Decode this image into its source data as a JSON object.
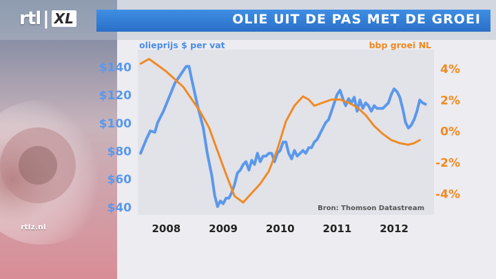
{
  "logo": {
    "brand": "rtl",
    "suffix": "XL"
  },
  "header": {
    "title": "OLIE UIT DE PAS MET DE GROEI"
  },
  "watermark": "rtlz.nl",
  "colors": {
    "oil": "#5b98ea",
    "gdp": "#f08a22",
    "title_bar": "#3480d8",
    "plot_bg": "#e3e3ea"
  },
  "chart_data": {
    "type": "line",
    "source_note": "Bron: Thomson Datastream",
    "x_ticks": [
      "2008",
      "2009",
      "2010",
      "2011",
      "2012"
    ],
    "x_range": [
      2007.6,
      2012.8
    ],
    "left_axis": {
      "label": "olieprijs $ per vat",
      "range": [
        34,
        152
      ],
      "ticks": [
        "$140",
        "$120",
        "$100",
        "$80",
        "$60",
        "$40"
      ],
      "tick_values": [
        140,
        120,
        100,
        80,
        60,
        40
      ]
    },
    "right_axis": {
      "label": "bbp groei NL",
      "range": [
        -5.4,
        5.2
      ],
      "ticks": [
        "4%",
        "2%",
        "0%",
        "-2%",
        "-4%"
      ],
      "tick_values": [
        4,
        2,
        0,
        -2,
        -4
      ]
    },
    "series": [
      {
        "name": "olieprijs $ per vat",
        "axis": "left",
        "points": [
          [
            2007.65,
            78
          ],
          [
            2007.75,
            88
          ],
          [
            2007.82,
            94
          ],
          [
            2007.9,
            93
          ],
          [
            2007.95,
            100
          ],
          [
            2008.05,
            108
          ],
          [
            2008.15,
            118
          ],
          [
            2008.25,
            128
          ],
          [
            2008.35,
            134
          ],
          [
            2008.45,
            140
          ],
          [
            2008.5,
            140
          ],
          [
            2008.55,
            130
          ],
          [
            2008.65,
            112
          ],
          [
            2008.75,
            96
          ],
          [
            2008.82,
            78
          ],
          [
            2008.9,
            62
          ],
          [
            2008.95,
            48
          ],
          [
            2009.0,
            40
          ],
          [
            2009.05,
            44
          ],
          [
            2009.1,
            42
          ],
          [
            2009.15,
            46
          ],
          [
            2009.2,
            46
          ],
          [
            2009.25,
            50
          ],
          [
            2009.3,
            56
          ],
          [
            2009.35,
            64
          ],
          [
            2009.4,
            66
          ],
          [
            2009.45,
            70
          ],
          [
            2009.5,
            72
          ],
          [
            2009.55,
            66
          ],
          [
            2009.6,
            73
          ],
          [
            2009.65,
            70
          ],
          [
            2009.7,
            78
          ],
          [
            2009.75,
            72
          ],
          [
            2009.8,
            76
          ],
          [
            2009.85,
            76
          ],
          [
            2009.9,
            78
          ],
          [
            2009.95,
            78
          ],
          [
            2010.0,
            72
          ],
          [
            2010.05,
            78
          ],
          [
            2010.1,
            80
          ],
          [
            2010.15,
            86
          ],
          [
            2010.2,
            86
          ],
          [
            2010.25,
            78
          ],
          [
            2010.3,
            74
          ],
          [
            2010.35,
            80
          ],
          [
            2010.4,
            76
          ],
          [
            2010.45,
            78
          ],
          [
            2010.5,
            80
          ],
          [
            2010.55,
            78
          ],
          [
            2010.6,
            82
          ],
          [
            2010.65,
            82
          ],
          [
            2010.7,
            86
          ],
          [
            2010.75,
            88
          ],
          [
            2010.8,
            92
          ],
          [
            2010.85,
            96
          ],
          [
            2010.9,
            100
          ],
          [
            2010.95,
            102
          ],
          [
            2011.0,
            108
          ],
          [
            2011.05,
            114
          ],
          [
            2011.1,
            120
          ],
          [
            2011.15,
            123
          ],
          [
            2011.2,
            117
          ],
          [
            2011.25,
            112
          ],
          [
            2011.3,
            117
          ],
          [
            2011.35,
            114
          ],
          [
            2011.4,
            118
          ],
          [
            2011.45,
            108
          ],
          [
            2011.5,
            116
          ],
          [
            2011.55,
            110
          ],
          [
            2011.6,
            114
          ],
          [
            2011.65,
            112
          ],
          [
            2011.7,
            108
          ],
          [
            2011.75,
            112
          ],
          [
            2011.8,
            110
          ],
          [
            2011.85,
            110
          ],
          [
            2011.9,
            110
          ],
          [
            2011.95,
            112
          ],
          [
            2012.0,
            114
          ],
          [
            2012.05,
            120
          ],
          [
            2012.1,
            124
          ],
          [
            2012.15,
            122
          ],
          [
            2012.2,
            118
          ],
          [
            2012.25,
            110
          ],
          [
            2012.3,
            100
          ],
          [
            2012.35,
            96
          ],
          [
            2012.4,
            98
          ],
          [
            2012.45,
            102
          ],
          [
            2012.5,
            108
          ],
          [
            2012.55,
            116
          ],
          [
            2012.6,
            114
          ],
          [
            2012.65,
            113
          ]
        ]
      },
      {
        "name": "bbp groei NL",
        "axis": "right",
        "points": [
          [
            2007.65,
            4.3
          ],
          [
            2007.8,
            4.6
          ],
          [
            2007.95,
            4.2
          ],
          [
            2008.1,
            3.8
          ],
          [
            2008.25,
            3.3
          ],
          [
            2008.4,
            2.8
          ],
          [
            2008.55,
            2.0
          ],
          [
            2008.7,
            1.2
          ],
          [
            2008.85,
            0.2
          ],
          [
            2009.0,
            -1.3
          ],
          [
            2009.15,
            -2.8
          ],
          [
            2009.3,
            -4.2
          ],
          [
            2009.45,
            -4.6
          ],
          [
            2009.6,
            -4.0
          ],
          [
            2009.75,
            -3.4
          ],
          [
            2009.9,
            -2.6
          ],
          [
            2010.05,
            -1.2
          ],
          [
            2010.2,
            0.6
          ],
          [
            2010.35,
            1.6
          ],
          [
            2010.5,
            2.2
          ],
          [
            2010.6,
            2.0
          ],
          [
            2010.7,
            1.6
          ],
          [
            2010.85,
            1.8
          ],
          [
            2011.0,
            2.0
          ],
          [
            2011.15,
            2.0
          ],
          [
            2011.3,
            1.8
          ],
          [
            2011.45,
            1.5
          ],
          [
            2011.6,
            1.0
          ],
          [
            2011.75,
            0.3
          ],
          [
            2011.9,
            -0.2
          ],
          [
            2012.05,
            -0.6
          ],
          [
            2012.2,
            -0.8
          ],
          [
            2012.35,
            -0.9
          ],
          [
            2012.45,
            -0.8
          ],
          [
            2012.55,
            -0.6
          ]
        ]
      }
    ]
  }
}
